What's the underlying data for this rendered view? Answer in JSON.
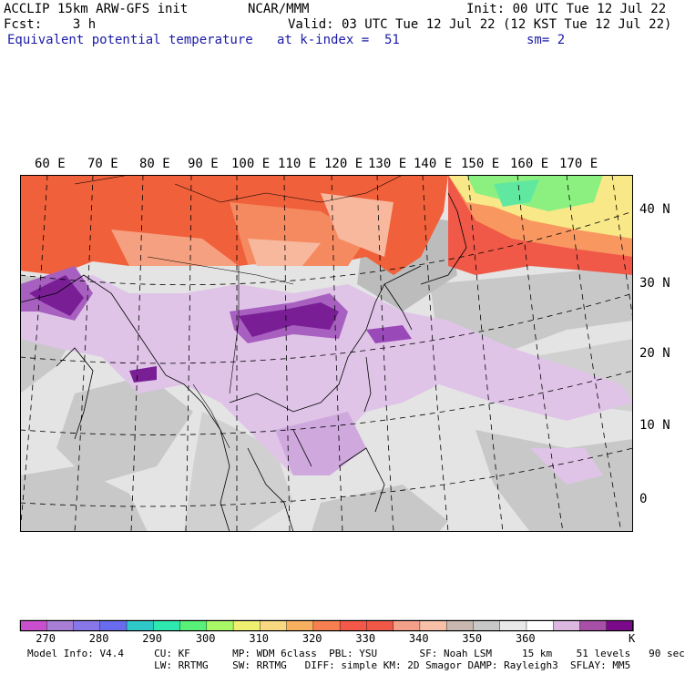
{
  "header": {
    "line1_left": "ACCLIP 15km ARW-GFS init",
    "line1_center": "NCAR/MMM",
    "line1_right": "Init: 00 UTC Tue 12 Jul 22",
    "line2_left": "Fcst:    3 h",
    "line2_right": "Valid: 03 UTC Tue 12 Jul 22 (12 KST Tue 12 Jul 22)",
    "field_name": "Equivalent potential temperature",
    "level": "at k-index =  51",
    "smoothing": "sm= 2"
  },
  "map": {
    "lon_labels": [
      "60 E",
      "70 E",
      "80 E",
      "90 E",
      "100 E",
      "110 E",
      "120 E",
      "130 E",
      "140 E",
      "150 E",
      "160 E",
      "170 E"
    ],
    "lat_labels": [
      "40 N",
      "30 N",
      "20 N",
      "10 N",
      "0"
    ],
    "colors": {
      "hot": "#f0603a",
      "warm": "#f7a07a",
      "salmon": "#f5b9a0",
      "gray": "#c8c8c8",
      "lightgray": "#e2e2e2",
      "lavender": "#ddbfe8",
      "violet": "#b678c8",
      "purple": "#7a1e96",
      "green": "#78e878",
      "yellow": "#f8f090"
    }
  },
  "colorbar": {
    "colors": [
      "#c94fcf",
      "#a77fd6",
      "#8877e8",
      "#6a6cf0",
      "#2ec8c8",
      "#2ee8b0",
      "#58f078",
      "#a8f868",
      "#f0f070",
      "#f8d880",
      "#f8b060",
      "#f88050",
      "#f45848",
      "#f05848",
      "#f4a088",
      "#f8c0a8",
      "#c8b8b0",
      "#c8c8c8",
      "#e8e8e8",
      "#ffffff",
      "#dcb8e0",
      "#a850a8",
      "#7a0a8a"
    ],
    "labels": [
      "270",
      "280",
      "290",
      "300",
      "310",
      "320",
      "330",
      "340",
      "350",
      "360"
    ],
    "unit": "K"
  },
  "model_info": {
    "line1": "Model Info: V4.4     CU: KF       MP: WDM 6class  PBL: YSU       SF: Noah LSM     15 km    51 levels   90 sec",
    "line2": "                     LW: RRTMG    SW: RRTMG   DIFF: simple KM: 2D Smagor DAMP: Rayleigh3  SFLAY: MM5"
  }
}
